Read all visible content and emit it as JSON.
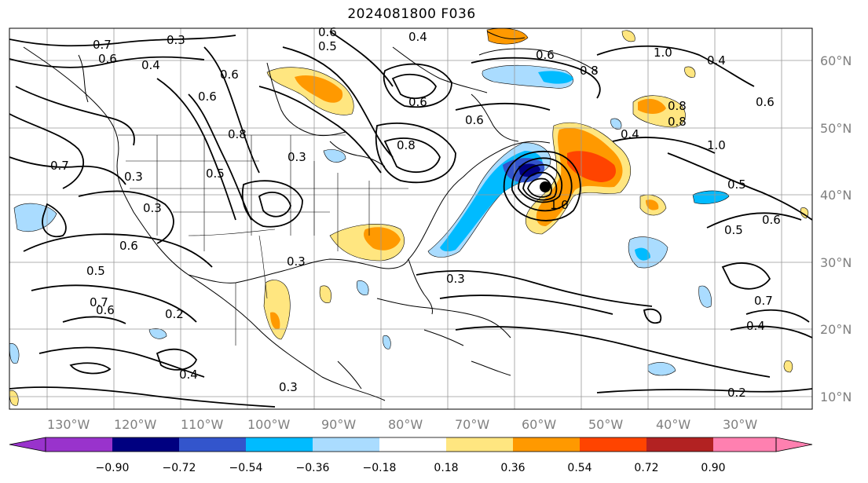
{
  "title": "2024081800 F036",
  "map": {
    "latitudes": [
      "60°N",
      "50°N",
      "40°N",
      "30°N",
      "20°N",
      "10°N"
    ],
    "longitudes": [
      "130°W",
      "120°W",
      "110°W",
      "100°W",
      "90°W",
      "80°W",
      "70°W",
      "60°W",
      "50°W",
      "40°W",
      "30°W"
    ],
    "contour_labels": [
      "0.7",
      "0.6",
      "0.3",
      "0.6",
      "0.4",
      "0.6",
      "0.6",
      "0.5",
      "0.4",
      "0.6",
      "0.8",
      "0.6",
      "0.8",
      "1.0",
      "0.4",
      "0.6",
      "0.6",
      "1.0",
      "0.7",
      "0.3",
      "0.3",
      "0.5",
      "0.8",
      "0.3",
      "0.8",
      "0.8",
      "0.4",
      "1.0",
      "0.5",
      "0.6",
      "0.5",
      "0.6",
      "0.5",
      "0.3",
      "0.7",
      "0.6",
      "0.2",
      "0.4",
      "0.3",
      "0.2",
      "0.7",
      "0.4",
      "0.3"
    ],
    "colors": {
      "neg_090": "#9933cc",
      "neg_072": "#000080",
      "neg_054": "#3355cc",
      "neg_036": "#00bbff",
      "neg_018": "#aadcff",
      "zero": "#ffffff",
      "pos_018": "#ffe680",
      "pos_036": "#ff9900",
      "pos_054": "#ff4400",
      "pos_072": "#b22222",
      "pos_090": "#ff80b0"
    }
  },
  "colorbar": {
    "ticks": [
      "−0.90",
      "−0.72",
      "−0.54",
      "−0.36",
      "−0.18",
      "0.18",
      "0.36",
      "0.54",
      "0.72",
      "0.90"
    ]
  }
}
